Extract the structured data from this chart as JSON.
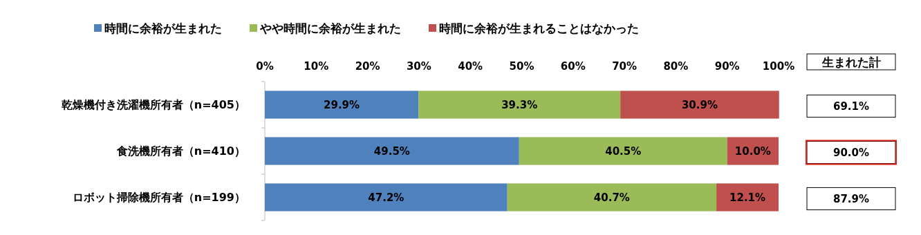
{
  "chart_data": {
    "type": "bar",
    "orientation": "horizontal",
    "stacked": true,
    "categories": [
      "乾燥機付き洗濯機所有者（n=405）",
      "食洗機所有者（n=410）",
      "ロボット掃除機所有者（n=199）"
    ],
    "series": [
      {
        "name": "時間に余裕が生まれた",
        "color": "#4f81bd",
        "values": [
          29.9,
          49.5,
          47.2
        ],
        "value_labels": [
          "29.9%",
          "49.5%",
          "47.2%"
        ]
      },
      {
        "name": "やや時間に余裕が生まれた",
        "color": "#9bbb59",
        "values": [
          39.3,
          40.5,
          40.7
        ],
        "value_labels": [
          "39.3%",
          "40.5%",
          "40.7%"
        ]
      },
      {
        "name": "時間に余裕が生まれることはなかった",
        "color": "#c0504d",
        "values": [
          30.9,
          10.0,
          12.1
        ],
        "value_labels": [
          "30.9%",
          "10.0%",
          "12.1%"
        ]
      }
    ],
    "xlim": [
      0,
      100
    ],
    "xticks": [
      {
        "value": 0,
        "label": "0%"
      },
      {
        "value": 10,
        "label": "10%"
      },
      {
        "value": 20,
        "label": "20%"
      },
      {
        "value": 30,
        "label": "30%"
      },
      {
        "value": 40,
        "label": "40%"
      },
      {
        "value": 50,
        "label": "50%"
      },
      {
        "value": 60,
        "label": "60%"
      },
      {
        "value": 70,
        "label": "70%"
      },
      {
        "value": 80,
        "label": "80%"
      },
      {
        "value": 90,
        "label": "90%"
      },
      {
        "value": 100,
        "label": "100%"
      }
    ],
    "annotations": [
      "生まれた計",
      "69.1%",
      "90.0%",
      "87.9%"
    ],
    "legend": "top"
  }
}
